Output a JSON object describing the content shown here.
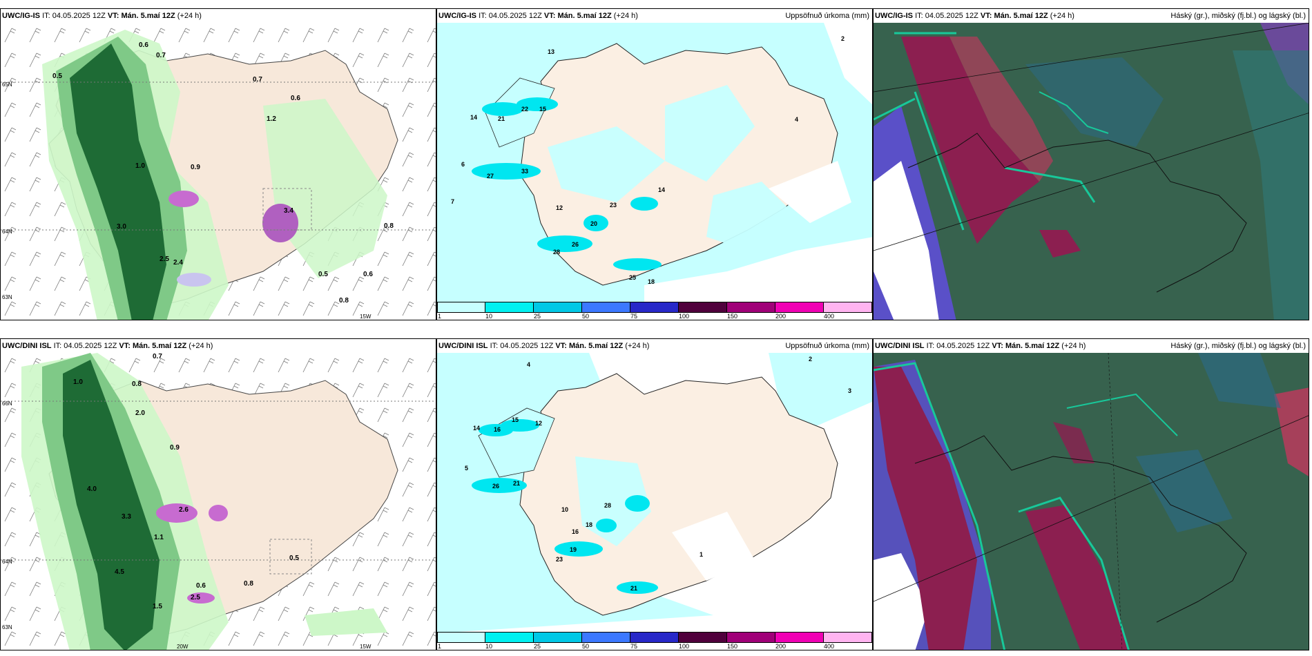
{
  "rows": [
    {
      "model": "UWC/IG-IS",
      "it_label": "IT:",
      "it_value": "04.05.2025 12Z",
      "vt_label": "VT:",
      "vt_value": "Mán. 5.maí 12Z",
      "lead": "(+24 h)",
      "precip_title": "Uppsöfnuð úrkoma (mm)",
      "cloud_title": "Háský (gr.), miðský (fj.bl.) og lágský (bl.)",
      "lat_labels": [
        "65N",
        "64N",
        "63N"
      ],
      "lon_labels": [
        "15W"
      ],
      "wind_values": [
        "0.6",
        "0.7",
        "0.5",
        "0.7",
        "1.2",
        "0.6",
        "1.0",
        "0.9",
        "2.5",
        "3.4",
        "3.0",
        "2.4",
        "0.8",
        "0.5",
        "0.8",
        "0.6"
      ],
      "precip_values": [
        "13",
        "22",
        "15",
        "21",
        "14",
        "27",
        "33",
        "12",
        "20",
        "26",
        "28",
        "23",
        "14",
        "4",
        "2",
        "6",
        "7",
        "25",
        "18"
      ]
    },
    {
      "model": "UWC/DINI ISL",
      "it_label": "IT:",
      "it_value": "04.05.2025 12Z",
      "vt_label": "VT:",
      "vt_value": "Mán. 5.maí 12Z",
      "lead": "(+24 h)",
      "precip_title": "Uppsöfnuð úrkoma (mm)",
      "cloud_title": "Háský (gr.), miðský (fj.bl.) og lágský (bl.)",
      "lat_labels": [
        "66N",
        "64N",
        "63N"
      ],
      "lon_labels": [
        "20W",
        "15W"
      ],
      "wind_values": [
        "0.7",
        "0.8",
        "1.0",
        "2.0",
        "0.9",
        "4.0",
        "2.6",
        "3.3",
        "1.1",
        "4.5",
        "0.6",
        "0.8",
        "0.5",
        "1.5",
        "2.5"
      ],
      "precip_values": [
        "14",
        "16",
        "15",
        "12",
        "26",
        "21",
        "10",
        "18",
        "16",
        "19",
        "23",
        "28",
        "4",
        "5",
        "2",
        "3",
        "1",
        "21"
      ]
    }
  ],
  "colorbar": {
    "labels": [
      "1",
      "10",
      "25",
      "50",
      "75",
      "100",
      "150",
      "200",
      "400"
    ],
    "colors": [
      "#c8ffff",
      "#00f0f0",
      "#00c8e6",
      "#3c78ff",
      "#2828c8",
      "#50003c",
      "#a00078",
      "#f000b4",
      "#ffb4f0"
    ]
  },
  "palette": {
    "land": "#f7e8da",
    "precip_light": "#c6ffff",
    "precip_cyan": "#00e6f0",
    "wind_light": "#cdf7c8",
    "wind_mid": "#7fc987",
    "wind_dark": "#1e6b35",
    "cloud_base": "#37624e",
    "cloud_high": "#8c1f50",
    "cloud_mid": "#5a50c8",
    "cloud_teal": "#18c89a"
  }
}
